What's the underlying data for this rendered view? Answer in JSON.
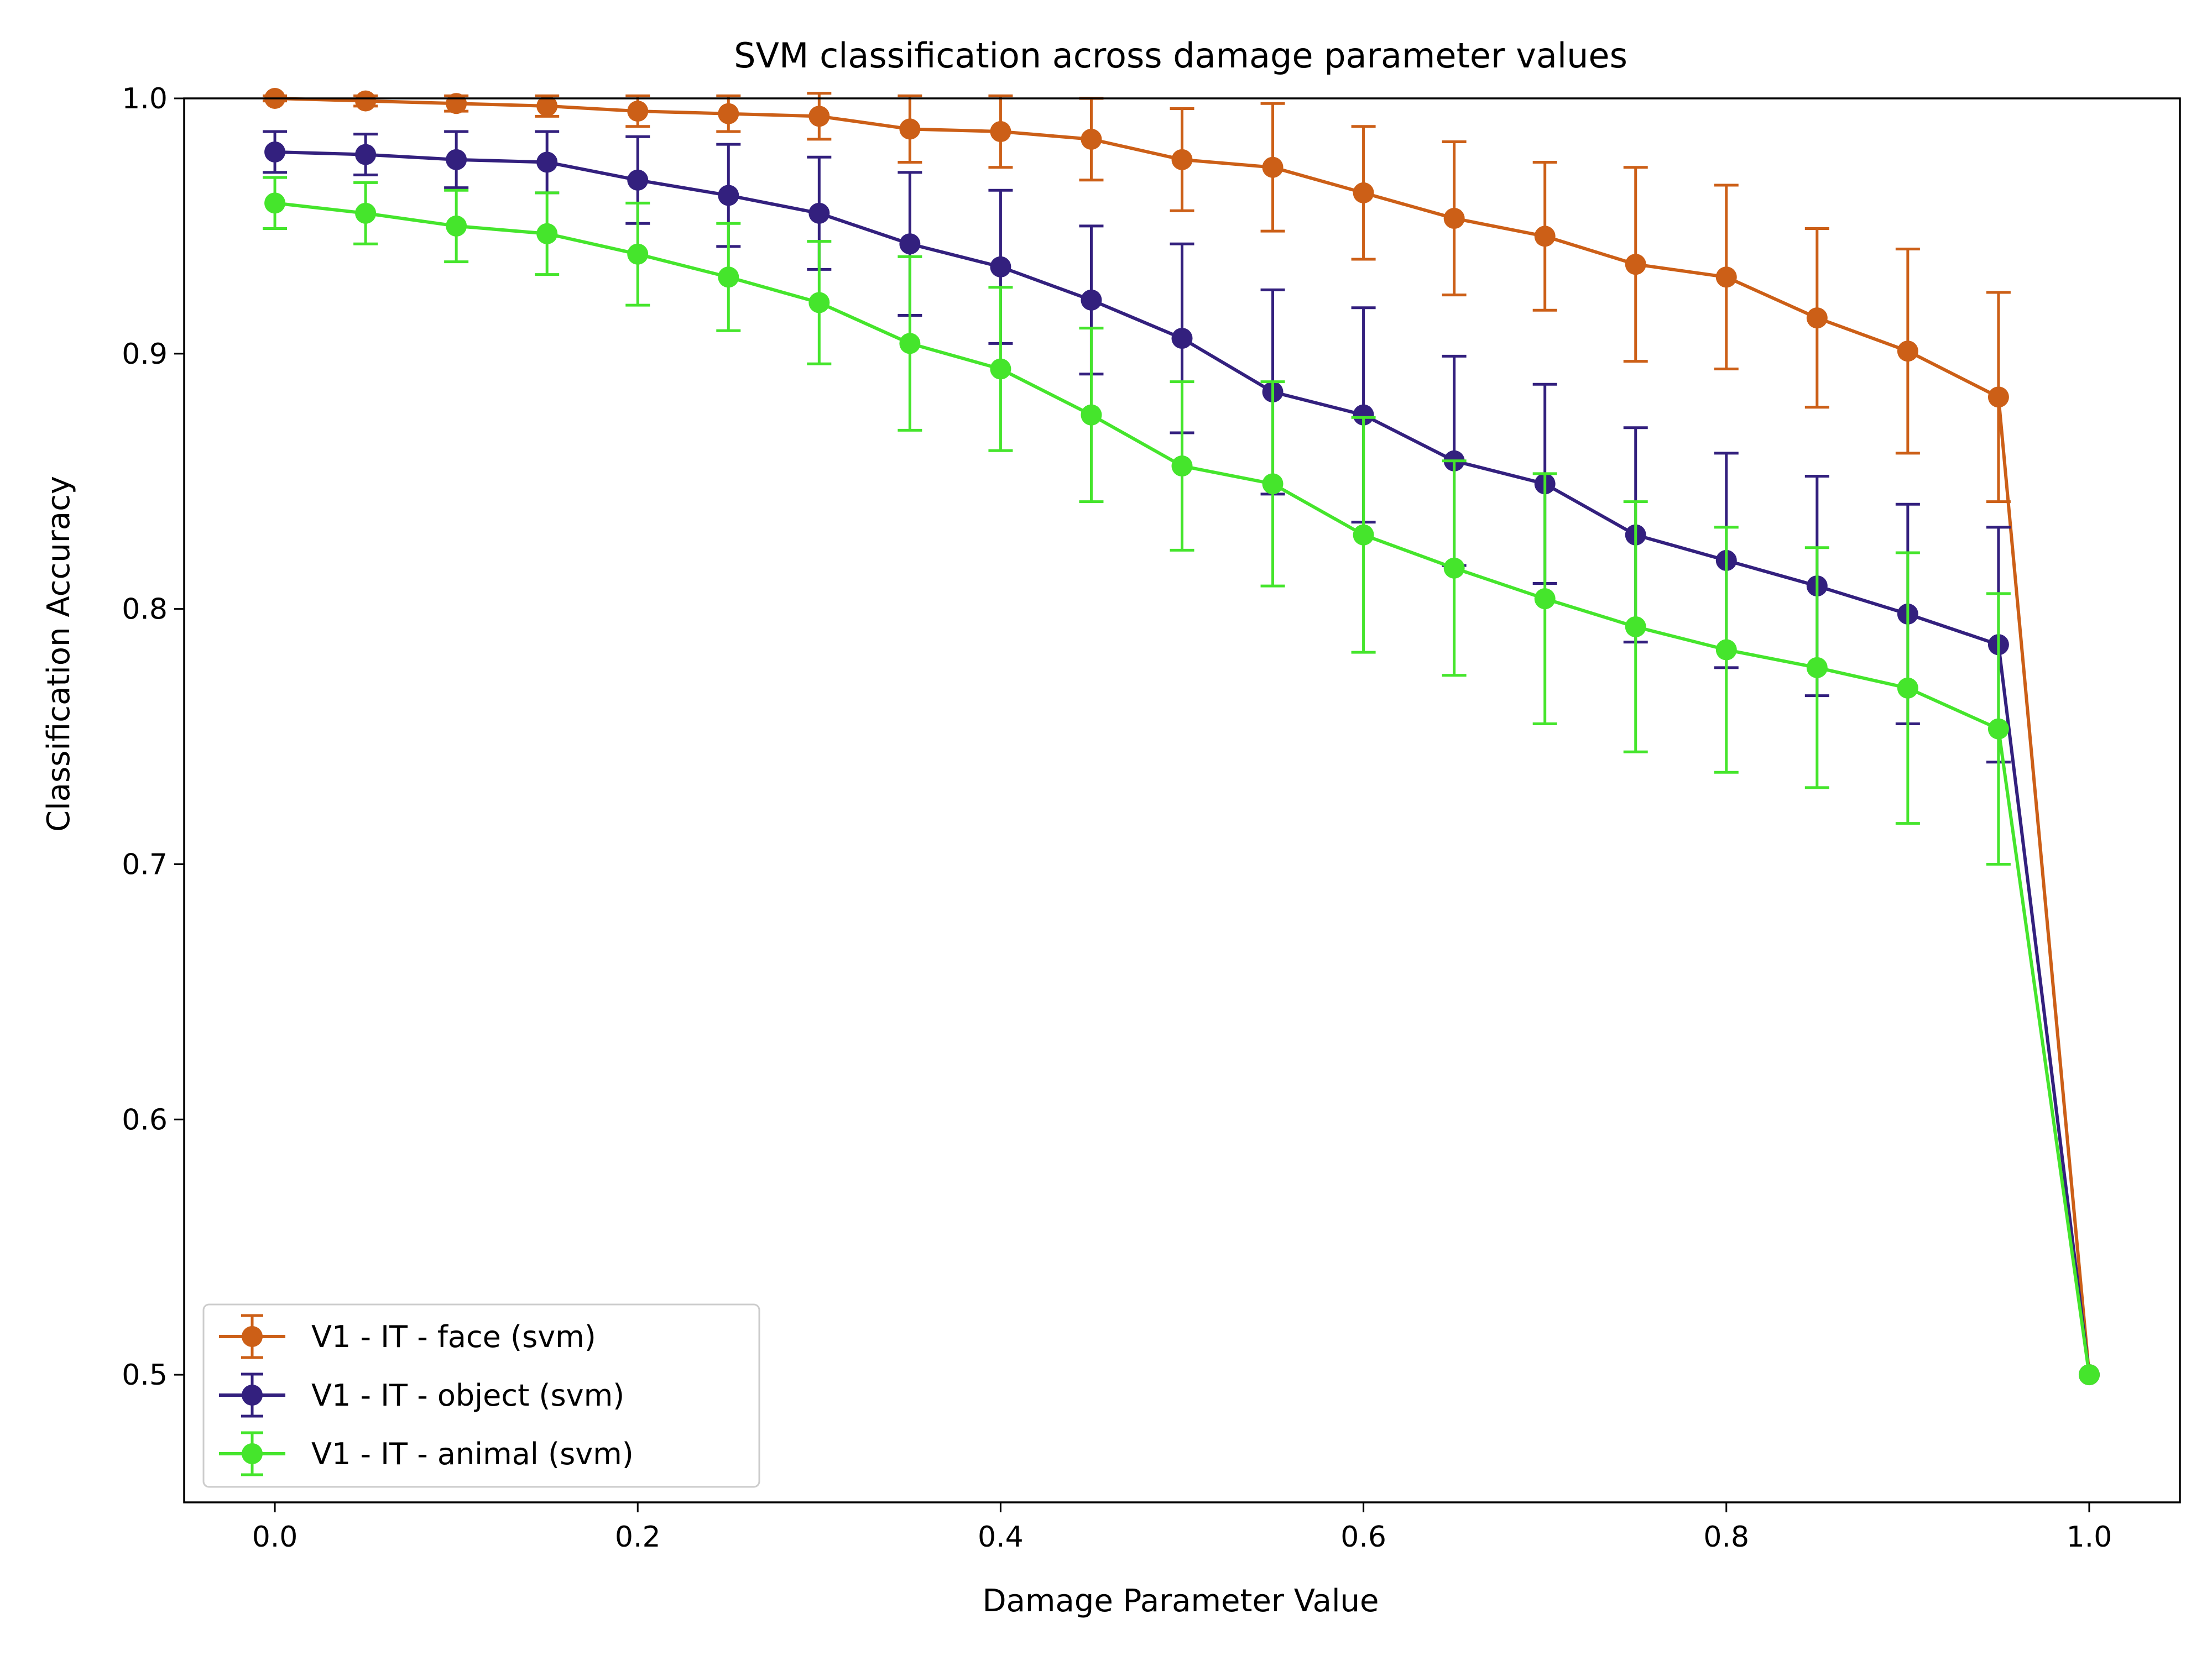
{
  "chart_data": {
    "type": "line",
    "title": "SVM classification across damage parameter values",
    "xlabel": "Damage Parameter Value",
    "ylabel": "Classification Accuracy",
    "xlim": [
      -0.05,
      1.05
    ],
    "ylim": [
      0.45,
      1.0
    ],
    "xticks": [
      0.0,
      0.2,
      0.4,
      0.6,
      0.8,
      1.0
    ],
    "xtick_labels": [
      "0.0",
      "0.2",
      "0.4",
      "0.6",
      "0.8",
      "1.0"
    ],
    "yticks": [
      0.5,
      0.6,
      0.7,
      0.8,
      0.9,
      1.0
    ],
    "ytick_labels": [
      "0.5",
      "0.6",
      "0.7",
      "0.8",
      "0.9",
      "1.0"
    ],
    "grid": false,
    "legend_position": "lower-left",
    "x": [
      0.0,
      0.05,
      0.1,
      0.15,
      0.2,
      0.25,
      0.3,
      0.35,
      0.4,
      0.45,
      0.5,
      0.55,
      0.6,
      0.65,
      0.7,
      0.75,
      0.8,
      0.85,
      0.9,
      0.95,
      1.0
    ],
    "series": [
      {
        "name": "V1 - IT - face (svm)",
        "color": "#cc5f17",
        "values": [
          1.0,
          0.999,
          0.998,
          0.997,
          0.995,
          0.994,
          0.993,
          0.988,
          0.987,
          0.984,
          0.976,
          0.973,
          0.963,
          0.953,
          0.946,
          0.935,
          0.93,
          0.914,
          0.901,
          0.883,
          0.5
        ],
        "errors": [
          0.001,
          0.002,
          0.003,
          0.004,
          0.006,
          0.007,
          0.009,
          0.013,
          0.014,
          0.016,
          0.02,
          0.025,
          0.026,
          0.03,
          0.029,
          0.038,
          0.036,
          0.035,
          0.04,
          0.041,
          0.0
        ]
      },
      {
        "name": "V1 - IT - object (svm)",
        "color": "#33207e",
        "values": [
          0.979,
          0.978,
          0.976,
          0.975,
          0.968,
          0.962,
          0.955,
          0.943,
          0.934,
          0.921,
          0.906,
          0.885,
          0.876,
          0.858,
          0.849,
          0.829,
          0.819,
          0.809,
          0.798,
          0.786,
          0.5
        ],
        "errors": [
          0.008,
          0.008,
          0.011,
          0.012,
          0.017,
          0.02,
          0.022,
          0.028,
          0.03,
          0.029,
          0.037,
          0.04,
          0.042,
          0.041,
          0.039,
          0.042,
          0.042,
          0.043,
          0.043,
          0.046,
          0.0
        ]
      },
      {
        "name": "V1 - IT - animal (svm)",
        "color": "#45e52c",
        "values": [
          0.959,
          0.955,
          0.95,
          0.947,
          0.939,
          0.93,
          0.92,
          0.904,
          0.894,
          0.876,
          0.856,
          0.849,
          0.829,
          0.816,
          0.804,
          0.793,
          0.784,
          0.777,
          0.769,
          0.753,
          0.5
        ],
        "errors": [
          0.01,
          0.012,
          0.014,
          0.016,
          0.02,
          0.021,
          0.024,
          0.034,
          0.032,
          0.034,
          0.033,
          0.04,
          0.046,
          0.042,
          0.049,
          0.049,
          0.048,
          0.047,
          0.053,
          0.053,
          0.0
        ]
      }
    ]
  }
}
